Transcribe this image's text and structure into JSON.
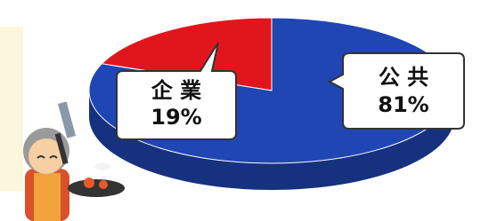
{
  "chart_data": {
    "type": "pie",
    "categories": [
      "企 業",
      "公 共"
    ],
    "values": [
      19,
      81
    ],
    "value_labels": [
      "19%",
      "81%"
    ],
    "colors": [
      "#e0161c",
      "#2046b4"
    ]
  }
}
